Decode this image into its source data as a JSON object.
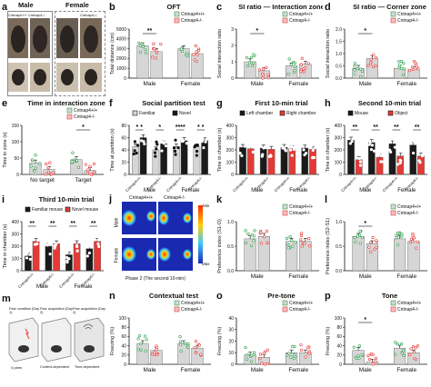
{
  "colors": {
    "wt": "#2e9e4a",
    "ko": "#e53935",
    "gray_bar": "#d6d6d6",
    "black_bar": "#1a1a1a",
    "red_bar": "#e53935",
    "white_bar": "#ffffff"
  },
  "panel_a": {
    "letter": "a",
    "male_label": "Male",
    "female_label": "Female",
    "wt_tag": "Cntnap4+/+",
    "ko_tag": "Cntnap4-/-",
    "ko_tag2": "Cntnap4-/-"
  },
  "panel_j": {
    "letter": "j",
    "wt_col": "Cntnap4+/+",
    "ko_col": "Cntnap4-/-",
    "male_row": "Male",
    "female_row": "Female",
    "scale_min": "Min",
    "scale_max": "Max",
    "caption": "Phase 2 (The second 10-min)"
  },
  "panel_m": {
    "letter": "m",
    "day1": "Fear condition (Day 1)",
    "day2a": "Fear acquisition (Day 2)",
    "day2b": "Fear acquisition (Day 2)",
    "cap1": "Context-dependent",
    "cap2": "Tone-dependent",
    "pairs": "4 pairs"
  },
  "chart_data": [
    {
      "letter": "b",
      "title": "OFT",
      "type": "bar",
      "ylabel": "Total distance (cm)",
      "ylim": [
        0,
        5000
      ],
      "yticks": [
        "0",
        "1000",
        "2000",
        "3000",
        "4000",
        "5000"
      ],
      "legend": [
        "Cntnap4+/+",
        "Cntnap4-/-"
      ],
      "groups": [
        "Male",
        "Female"
      ],
      "values": [
        3300,
        2700,
        3000,
        2500
      ],
      "sig": [
        {
          "g": 0,
          "text": "**"
        }
      ]
    },
    {
      "letter": "c",
      "title": "SI ratio — Interaction zone",
      "type": "bar",
      "ylabel": "Social interaction ratio",
      "ylim": [
        0,
        3
      ],
      "yticks": [
        "0",
        "1",
        "2",
        "3"
      ],
      "legend": [
        "Cntnap4+/+",
        "Cntnap4-/-"
      ],
      "groups": [
        "Male",
        "Female"
      ],
      "values": [
        1.0,
        0.45,
        0.75,
        0.85
      ],
      "sig": [
        {
          "g": 0,
          "text": "*"
        }
      ]
    },
    {
      "letter": "d",
      "title": "SI ratio — Corner zone",
      "type": "bar",
      "ylabel": "Social interaction ratio",
      "ylim": [
        0,
        2
      ],
      "yticks": [
        "0.0",
        "0.5",
        "1.0",
        "1.5",
        "2.0"
      ],
      "legend": [
        "Cntnap4+/+",
        "Cntnap4-/-"
      ],
      "groups": [
        "Male",
        "Female"
      ],
      "values": [
        0.4,
        0.8,
        0.4,
        0.35
      ],
      "sig": [
        {
          "g": 0,
          "text": "*"
        }
      ]
    },
    {
      "letter": "e",
      "title": "Time in interaction zone",
      "type": "bar",
      "ylabel": "Time in zone (s)",
      "ylim": [
        0,
        150
      ],
      "yticks": [
        "0",
        "50",
        "100",
        "150"
      ],
      "legend": [
        "Cntnap4+/+",
        "Cntnap4-/-"
      ],
      "groups": [
        "No target",
        "Target"
      ],
      "values": [
        35,
        15,
        45,
        12
      ],
      "sig": [
        {
          "g": 1,
          "text": "*"
        }
      ]
    },
    {
      "letter": "f",
      "title": "Social partition test",
      "type": "bar",
      "ylabel": "Time at partition (s)",
      "ylim": [
        0,
        80
      ],
      "yticks": [
        "0",
        "20",
        "40",
        "60",
        "80"
      ],
      "legend": [
        "Familiar",
        "Novel"
      ],
      "groups": [
        "Cntnap4+/+",
        "Cntnap4-/-",
        "Cntnap4+/+",
        "Cntnap4-/-"
      ],
      "group_caption": [
        "Male",
        "Female"
      ],
      "values": [
        45,
        60,
        40,
        50,
        45,
        55,
        45,
        55
      ],
      "sig": [
        {
          "g": 0,
          "text": "* *"
        },
        {
          "g": 1,
          "text": "*"
        },
        {
          "g": 2,
          "text": "****"
        },
        {
          "g": 3,
          "text": "* *"
        }
      ]
    },
    {
      "letter": "g",
      "title": "First 10-min trial",
      "type": "bar",
      "ylabel": "Time in chamber (s)",
      "ylim": [
        0,
        400
      ],
      "yticks": [
        "0",
        "100",
        "200",
        "300",
        "400"
      ],
      "legend": [
        "Left chamber",
        "Right chamber"
      ],
      "groups": [
        "Cntnap4+/+",
        "Cntnap4-/-",
        "Cntnap4+/+",
        "Cntnap4-/-"
      ],
      "group_caption": [
        "Male",
        "Female"
      ],
      "values": [
        220,
        210,
        215,
        205,
        220,
        210,
        215,
        205
      ],
      "sig": []
    },
    {
      "letter": "h",
      "title": "Second 10-min trial",
      "type": "bar",
      "ylabel": "Time in chamber (s)",
      "ylim": [
        0,
        400
      ],
      "yticks": [
        "0",
        "100",
        "200",
        "300",
        "400"
      ],
      "legend": [
        "Mouse",
        "Object"
      ],
      "groups": [
        "Cntnap4+/+",
        "Cntnap4-/-",
        "Cntnap4+/+",
        "Cntnap4-/-"
      ],
      "group_caption": [
        "Male",
        "Female"
      ],
      "values": [
        280,
        120,
        260,
        140,
        250,
        150,
        240,
        150
      ],
      "sig": [
        {
          "g": 0,
          "text": "**"
        },
        {
          "g": 1,
          "text": "**"
        },
        {
          "g": 2,
          "text": "**"
        },
        {
          "g": 3,
          "text": "**"
        }
      ]
    },
    {
      "letter": "i",
      "title": "Third 10-min trial",
      "type": "bar",
      "ylabel": "Time in chamber (s)",
      "ylim": [
        0,
        400
      ],
      "yticks": [
        "0",
        "100",
        "200",
        "300",
        "400"
      ],
      "legend": [
        "Familiar mouse",
        "Novel mouse"
      ],
      "groups": [
        "Cntnap4+/+",
        "Cntnap4-/-",
        "Cntnap4+/+",
        "Cntnap4-/-"
      ],
      "group_caption": [
        "Male",
        "Female"
      ],
      "values": [
        120,
        240,
        200,
        220,
        130,
        220,
        180,
        240
      ],
      "sig": [
        {
          "g": 0,
          "text": "**"
        },
        {
          "g": 1,
          "text": "**"
        },
        {
          "g": 2,
          "text": "**"
        },
        {
          "g": 3,
          "text": "**"
        }
      ]
    },
    {
      "letter": "k",
      "title": "",
      "type": "bar",
      "ylabel": "Preference index (S1-O)",
      "ylim": [
        0,
        1
      ],
      "yticks": [
        "0.0",
        "0.5",
        "1.0"
      ],
      "legend": [
        "Cntnap4+/+",
        "Cntnap4-/-"
      ],
      "groups": [
        "Male",
        "Female"
      ],
      "values": [
        0.65,
        0.7,
        0.6,
        0.6
      ],
      "sig": []
    },
    {
      "letter": "l",
      "title": "",
      "type": "bar",
      "ylabel": "Preference index (S2-S1)",
      "ylim": [
        0,
        1
      ],
      "yticks": [
        "0.0",
        "0.5",
        "1.0"
      ],
      "legend": [
        "Cntnap4+/+",
        "Cntnap4-/-"
      ],
      "groups": [
        "Male",
        "Female"
      ],
      "values": [
        0.7,
        0.55,
        0.65,
        0.6
      ],
      "sig": [
        {
          "g": 0,
          "text": "*"
        }
      ]
    },
    {
      "letter": "n",
      "title": "Contextual test",
      "type": "bar",
      "ylabel": "Freezing (%)",
      "ylim": [
        0,
        100
      ],
      "yticks": [
        "0",
        "20",
        "40",
        "60",
        "80",
        "100"
      ],
      "legend": [
        "Cntnap4+/+",
        "Cntnap4-/-"
      ],
      "groups": [
        "Male",
        "Female"
      ],
      "values": [
        45,
        30,
        45,
        35
      ],
      "sig": []
    },
    {
      "letter": "o",
      "title": "Pre-tone",
      "type": "bar",
      "ylabel": "Freezing (%)",
      "ylim": [
        0,
        40
      ],
      "yticks": [
        "0",
        "10",
        "20",
        "30",
        "40"
      ],
      "legend": [
        "Cntnap4+/+",
        "Cntnap4-/-"
      ],
      "groups": [
        "Male",
        "Female"
      ],
      "values": [
        8,
        6,
        10,
        10
      ],
      "sig": []
    },
    {
      "letter": "p",
      "title": "Tone",
      "type": "bar",
      "ylabel": "Freezing (%)",
      "ylim": [
        0,
        100
      ],
      "yticks": [
        "0",
        "20",
        "40",
        "60",
        "80",
        "100"
      ],
      "legend": [
        "Cntnap4+/+",
        "Cntnap4-/-"
      ],
      "groups": [
        "Male",
        "Female"
      ],
      "values": [
        30,
        5,
        35,
        25
      ],
      "sig": [
        {
          "g": 0,
          "text": "*"
        }
      ]
    }
  ]
}
